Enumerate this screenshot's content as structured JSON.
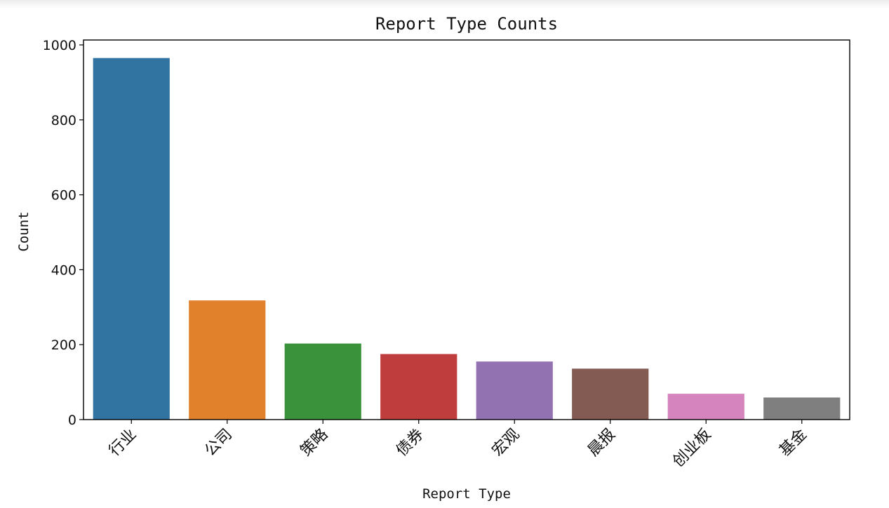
{
  "chart_data": {
    "type": "bar",
    "title": "Report Type Counts",
    "xlabel": "Report Type",
    "ylabel": "Count",
    "categories": [
      "行业",
      "公司",
      "策略",
      "债券",
      "宏观",
      "晨报",
      "创业板",
      "基金"
    ],
    "values": [
      965,
      318,
      203,
      175,
      155,
      136,
      69,
      59
    ],
    "colors": [
      "#3274a1",
      "#e1812c",
      "#3a923a",
      "#c03d3e",
      "#9372b2",
      "#845b53",
      "#d684bd",
      "#7f7f7f"
    ],
    "ylim": [
      0,
      1000
    ],
    "yticks": [
      0,
      200,
      400,
      600,
      800,
      1000
    ],
    "grid": false,
    "legend": "none"
  }
}
